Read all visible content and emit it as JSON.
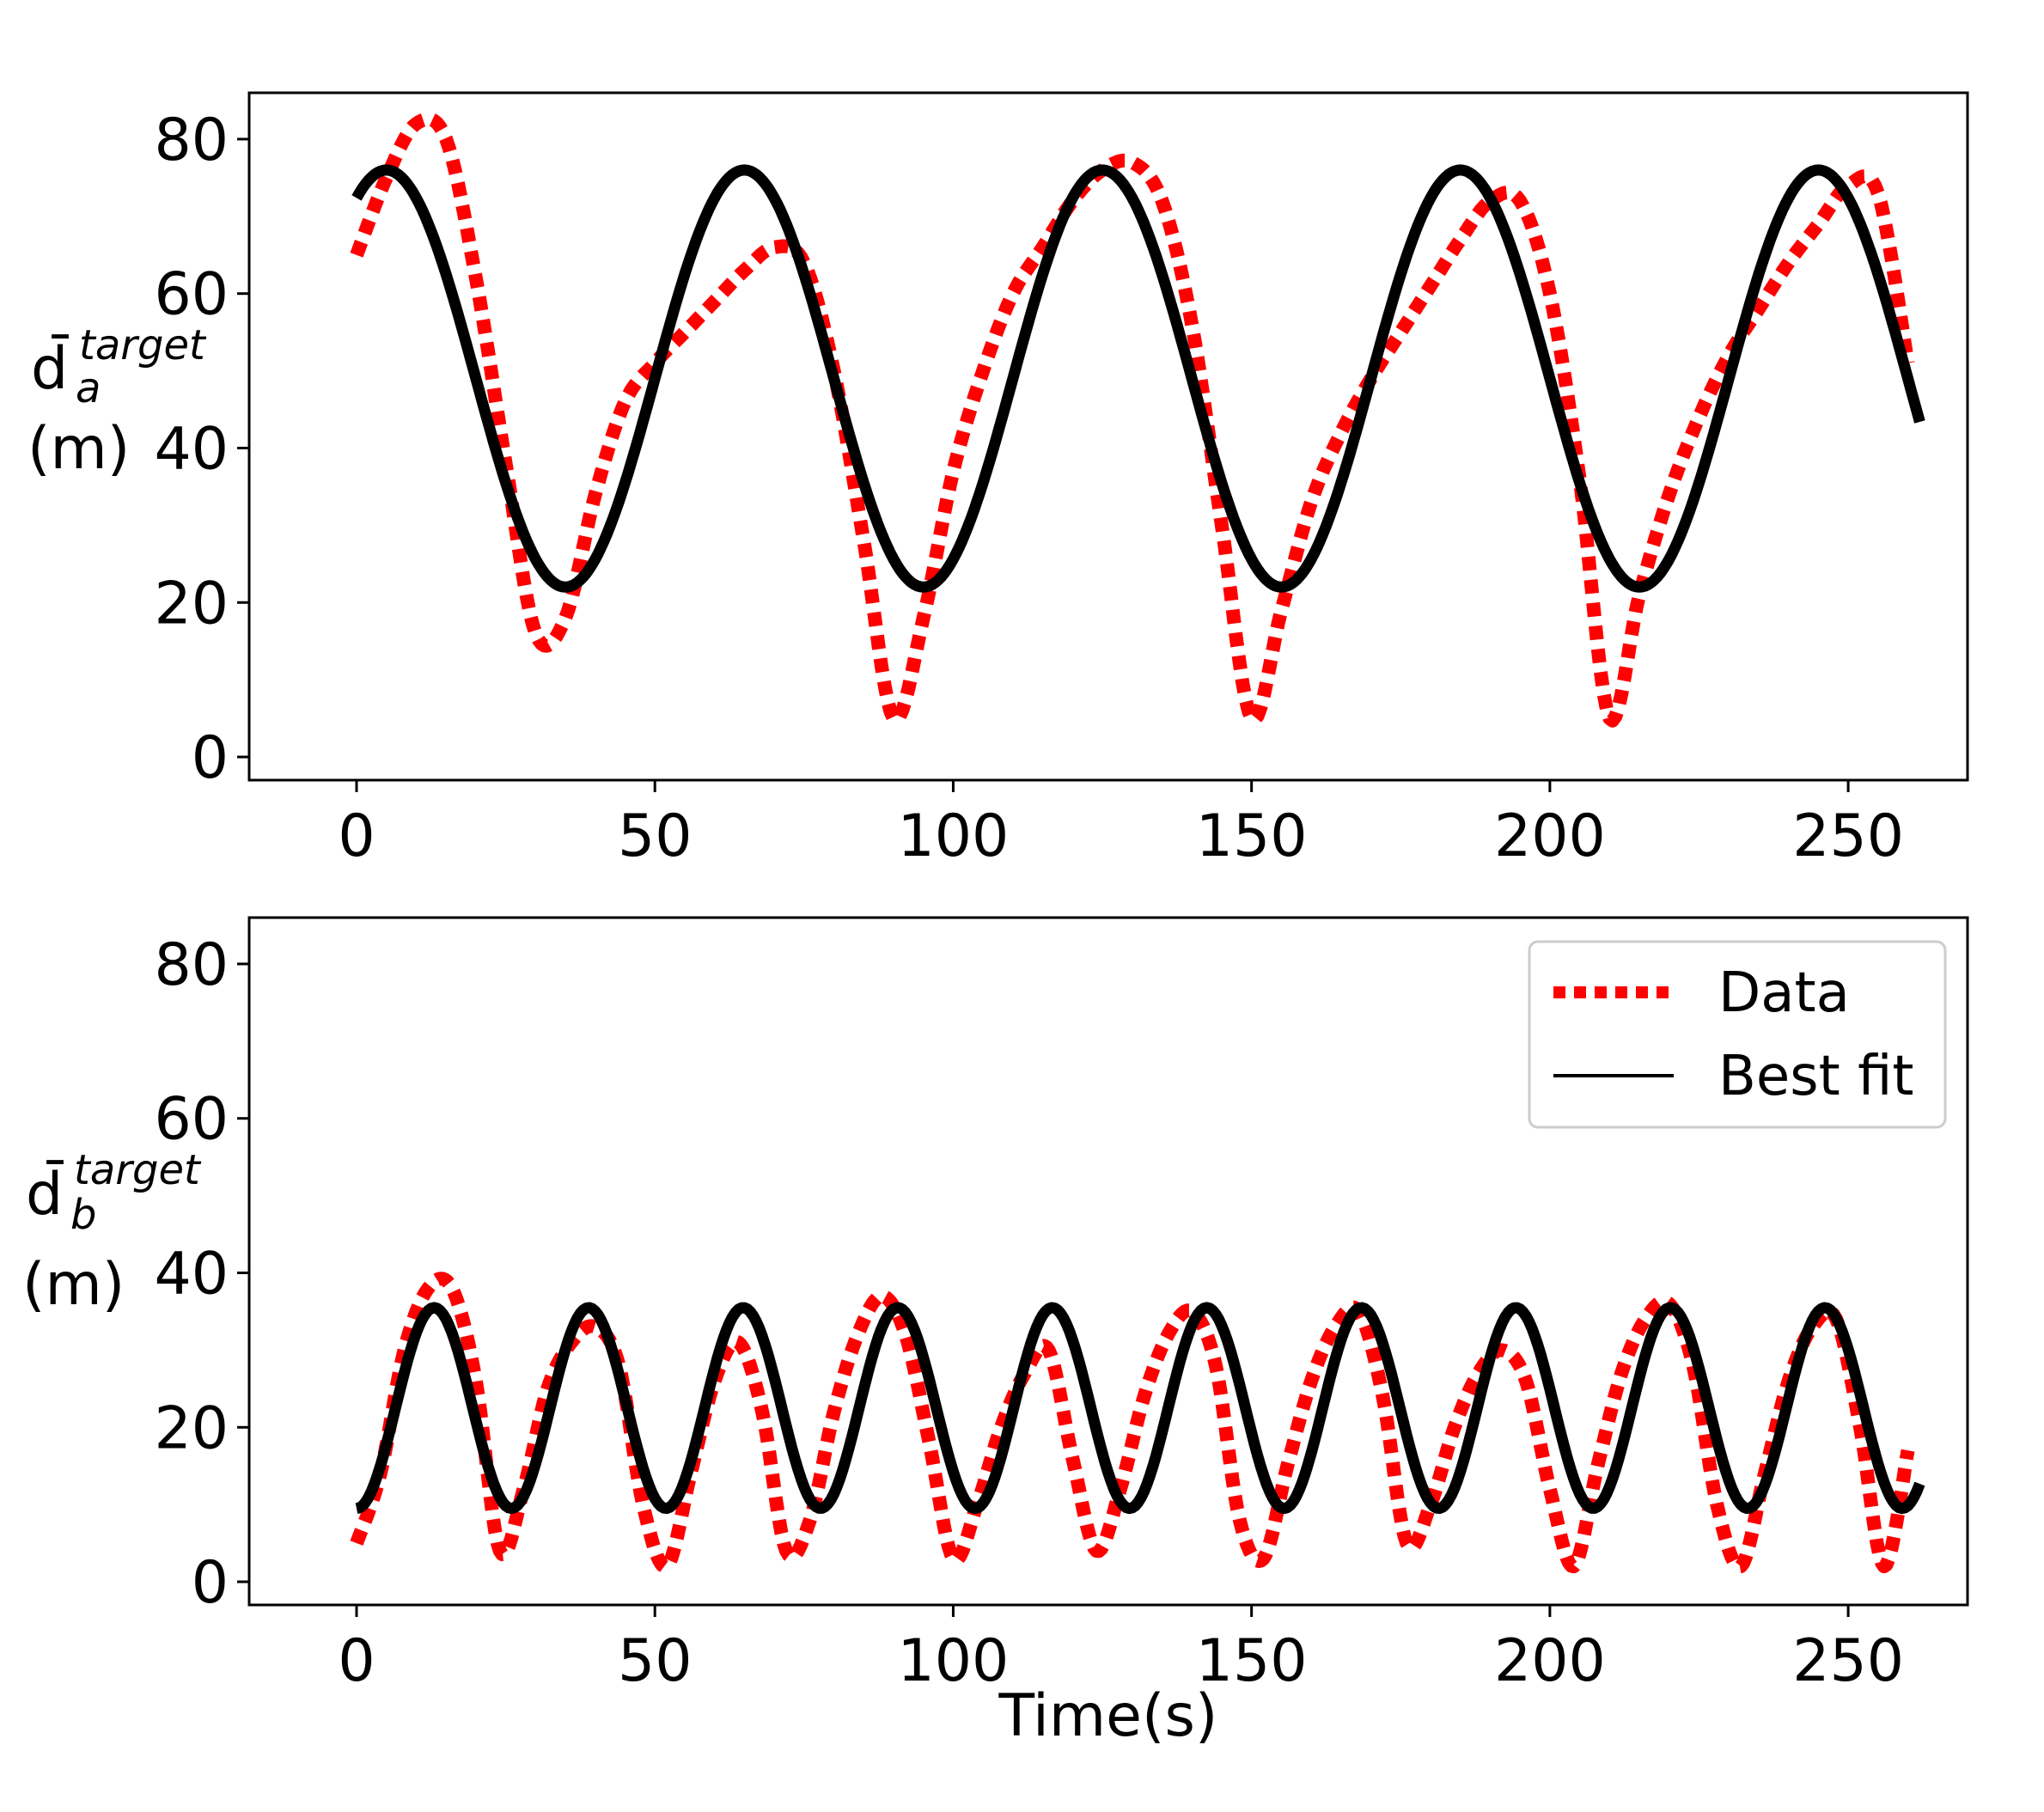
{
  "colors": {
    "data": "#ff0000",
    "fit": "#000000"
  },
  "legend": {
    "placement": "upper-right",
    "entries": [
      "Data",
      "Best fit"
    ]
  },
  "chart_data": [
    {
      "type": "line",
      "ylabel": {
        "base": "d̄",
        "sub": "a",
        "sup": "target",
        "unit": "(m)"
      },
      "xlabel": "",
      "xlim": [
        -18,
        270
      ],
      "ylim": [
        -3,
        86
      ],
      "xticks": [
        0,
        50,
        100,
        150,
        200,
        250
      ],
      "yticks": [
        0,
        20,
        40,
        60,
        80
      ],
      "series": [
        {
          "name": "Data",
          "style": "dotted",
          "x": [
            0,
            5,
            10,
            15,
            20,
            25,
            30,
            35,
            40,
            45,
            50,
            55,
            60,
            65,
            70,
            75,
            80,
            85,
            90,
            95,
            100,
            105,
            110,
            115,
            120,
            125,
            130,
            135,
            140,
            145,
            150,
            155,
            160,
            165,
            170,
            175,
            180,
            185,
            190,
            195,
            200,
            205,
            210,
            215,
            220,
            225,
            230,
            235,
            240,
            245,
            250,
            255,
            260
          ],
          "y": [
            65,
            75,
            82,
            80,
            62,
            38,
            16,
            18,
            34,
            46,
            51,
            55,
            59,
            63,
            66,
            64,
            50,
            28,
            5,
            18,
            37,
            50,
            60,
            66,
            72,
            76,
            77,
            72,
            56,
            30,
            5,
            19,
            33,
            42,
            49,
            55,
            61,
            67,
            72,
            72,
            60,
            36,
            5,
            21,
            34,
            44,
            52,
            58,
            64,
            69,
            74,
            73,
            51
          ]
        },
        {
          "name": "Best fit",
          "style": "solid",
          "model": {
            "mean": 49,
            "amplitude": 27,
            "period": 60,
            "peak_time": 5,
            "t_start": 0,
            "t_end": 262
          }
        }
      ]
    },
    {
      "type": "line",
      "ylabel": {
        "base": "d̄",
        "sub": "b",
        "sup": "target",
        "unit": "(m)"
      },
      "xlabel": "Time(s)",
      "xlim": [
        -18,
        270
      ],
      "ylim": [
        -3,
        86
      ],
      "xticks": [
        0,
        50,
        100,
        150,
        200,
        250
      ],
      "yticks": [
        0,
        20,
        40,
        60,
        80
      ],
      "series": [
        {
          "name": "Data",
          "style": "dotted",
          "x": [
            0,
            4,
            8,
            12,
            16,
            20,
            24,
            28,
            32,
            36,
            40,
            44,
            48,
            52,
            56,
            60,
            64,
            68,
            72,
            76,
            80,
            84,
            88,
            92,
            96,
            100,
            104,
            108,
            112,
            116,
            120,
            124,
            128,
            132,
            136,
            140,
            144,
            148,
            152,
            156,
            160,
            164,
            168,
            172,
            176,
            180,
            184,
            188,
            192,
            196,
            200,
            204,
            208,
            212,
            216,
            220,
            224,
            228,
            232,
            236,
            240,
            244,
            248,
            252,
            256,
            260
          ],
          "y": [
            5,
            14,
            30,
            38,
            38,
            26,
            4,
            12,
            25,
            31,
            33,
            28,
            10,
            2,
            14,
            26,
            31,
            22,
            4,
            8,
            22,
            32,
            37,
            32,
            18,
            3,
            10,
            20,
            27,
            30,
            16,
            4,
            12,
            24,
            32,
            35,
            28,
            8,
            3,
            15,
            26,
            33,
            35,
            24,
            5,
            10,
            20,
            27,
            30,
            26,
            12,
            2,
            15,
            27,
            34,
            36,
            28,
            10,
            2,
            14,
            26,
            33,
            34,
            20,
            2,
            17
          ]
        },
        {
          "name": "Best fit",
          "style": "solid",
          "model": {
            "mean": 22.5,
            "amplitude": 13,
            "period": 25.9,
            "peak_time": 13,
            "t_start": 0,
            "t_end": 262
          }
        }
      ]
    }
  ]
}
